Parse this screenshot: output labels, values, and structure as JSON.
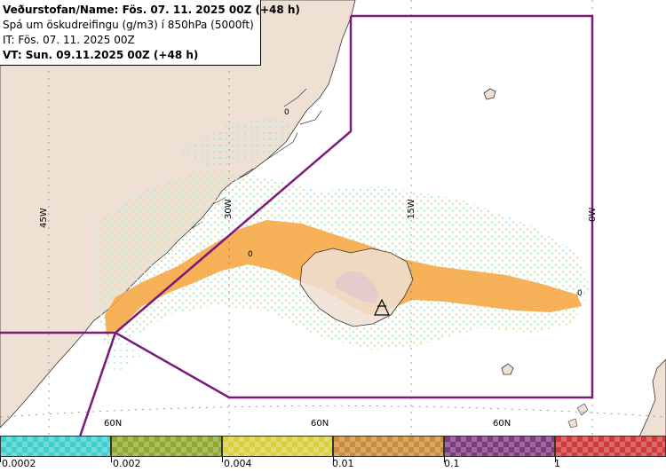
{
  "infobox": {
    "line1": "Veðurstofan/Name: Fös. 07. 11. 2025 00Z (+48 h)",
    "line2": "Spá um öskudreifingu (g/m3) í 850hPa (5000ft)",
    "line3": "IT: Fös. 07. 11. 2025 00Z",
    "line4": "VT: Sun. 09.11.2025 00Z (+48 h)"
  },
  "grid_labels": {
    "lon_45w": "45W",
    "lon_30w": "30W",
    "lon_15w": "15W",
    "lon_0w": "0W",
    "lat_60n_a": "60N",
    "lat_60n_b": "60N",
    "lat_60n_c": "60N"
  },
  "markers": {
    "m1": "0",
    "m2": "0",
    "m3": "0"
  },
  "legend": {
    "items": [
      {
        "label": "0.0002",
        "color": "#3fcfcf"
      },
      {
        "label": "0.002",
        "color": "#8fa830"
      },
      {
        "label": "0.004",
        "color": "#d8d040"
      },
      {
        "label": "0.01",
        "color": "#c98a3a"
      },
      {
        "label": "0.1",
        "color": "#7d3a80"
      },
      {
        "label": "1",
        "color": "#cf3a3a"
      }
    ]
  },
  "colors": {
    "land": "#efe0d4",
    "coast": "#333333",
    "boundary": "#7a1a7a",
    "ash_orange": "#f5a947",
    "ash_purple": "#a64ca6",
    "ash_yellow": "#f0e68c",
    "ash_cyan": "#9de8ee"
  }
}
